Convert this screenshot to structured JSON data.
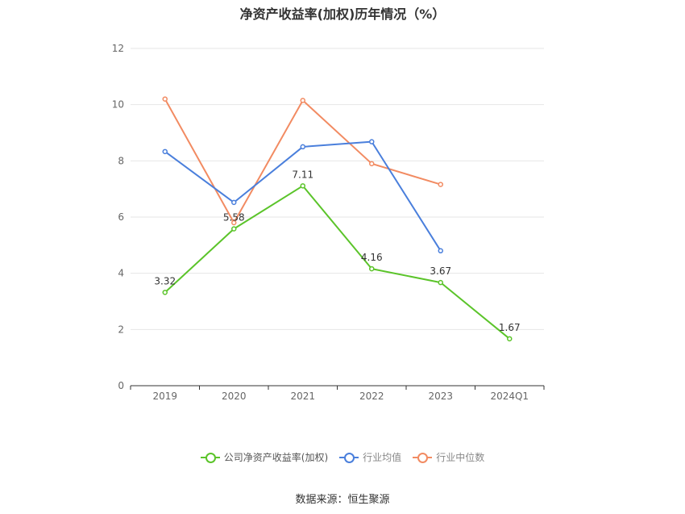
{
  "chart_data": {
    "type": "line",
    "title": "净资产收益率(加权)历年情况（%）",
    "categories": [
      "2019",
      "2020",
      "2021",
      "2022",
      "2023",
      "2024Q1"
    ],
    "ylim": [
      0,
      12
    ],
    "yticks": [
      0,
      2,
      4,
      6,
      8,
      10,
      12
    ],
    "grid": true,
    "legend_position": "bottom",
    "series": [
      {
        "name": "公司净资产收益率(加权)",
        "color": "#5bc42a",
        "values": [
          3.32,
          5.58,
          7.11,
          4.16,
          3.67,
          1.67
        ],
        "labels": [
          "3.32",
          "5.58",
          "7.11",
          "4.16",
          "3.67",
          "1.67"
        ]
      },
      {
        "name": "行业均值",
        "color": "#4a7fdc",
        "values": [
          8.33,
          6.52,
          8.5,
          8.68,
          4.8,
          null
        ]
      },
      {
        "name": "行业中位数",
        "color": "#f28b62",
        "values": [
          10.2,
          5.8,
          10.15,
          7.9,
          7.16,
          null
        ]
      }
    ]
  },
  "source": "数据来源：恒生聚源"
}
